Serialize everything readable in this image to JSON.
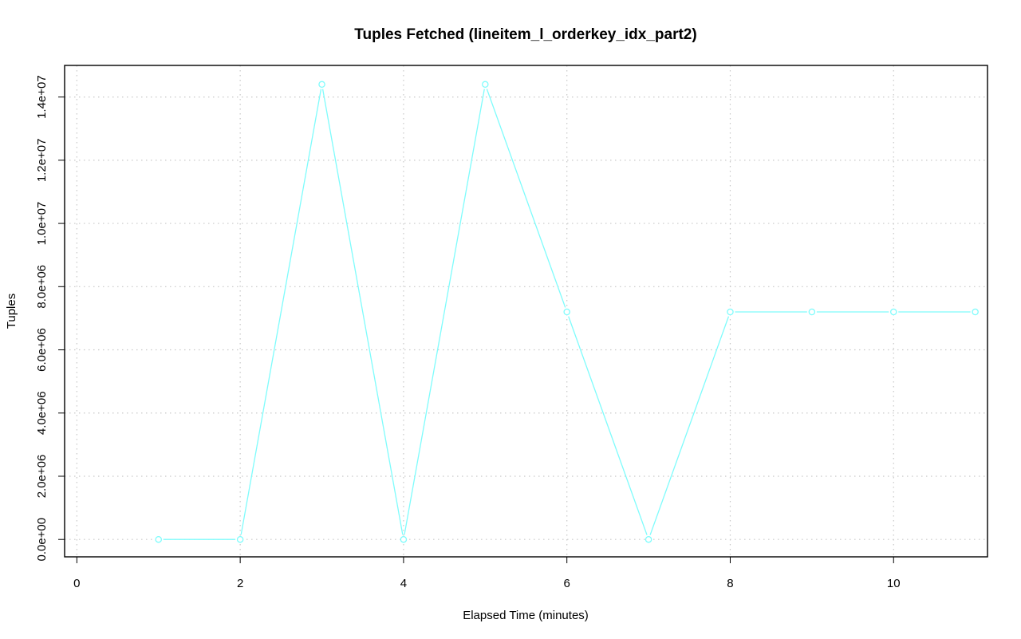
{
  "chart_data": {
    "type": "line",
    "title": "Tuples Fetched (lineitem_l_orderkey_idx_part2)",
    "xlabel": "Elapsed Time (minutes)",
    "ylabel": "Tuples",
    "xlim": [
      -0.15,
      11.15
    ],
    "ylim": [
      -550000,
      15000000
    ],
    "x_ticks": [
      0,
      2,
      4,
      6,
      8,
      10
    ],
    "x_tick_labels": [
      "0",
      "2",
      "4",
      "6",
      "8",
      "10"
    ],
    "y_ticks": [
      0,
      2000000,
      4000000,
      6000000,
      8000000,
      10000000,
      12000000,
      14000000
    ],
    "y_tick_labels": [
      "0.0e+00",
      "2.0e+06",
      "4.0e+06",
      "6.0e+06",
      "8.0e+06",
      "1.0e+07",
      "1.2e+07",
      "1.4e+07"
    ],
    "grid": true,
    "series": [
      {
        "color": "#7ffcfc",
        "x": [
          1,
          2,
          3,
          4,
          5,
          6,
          7,
          8,
          9,
          10,
          11
        ],
        "y": [
          0,
          0,
          14400000,
          0,
          14400000,
          7200000,
          0,
          7200000,
          7200000,
          7200000,
          7200000
        ]
      }
    ]
  }
}
